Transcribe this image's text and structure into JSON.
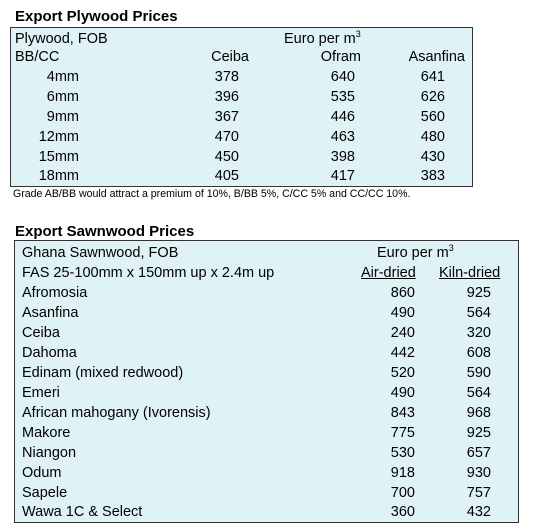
{
  "plywood": {
    "title": "Export Plywood Prices",
    "header_left_1": "Plywood, FOB",
    "header_left_2": "BB/CC",
    "unit_main": "Euro per m",
    "unit_sup": "3",
    "columns": [
      "Ceiba",
      "Ofram",
      "Asanfina"
    ],
    "rows": [
      {
        "size": "4mm",
        "values": [
          "378",
          "640",
          "641"
        ]
      },
      {
        "size": "6mm",
        "values": [
          "396",
          "535",
          "626"
        ]
      },
      {
        "size": "9mm",
        "values": [
          "367",
          "446",
          "560"
        ]
      },
      {
        "size": "12mm",
        "values": [
          "470",
          "463",
          "480"
        ]
      },
      {
        "size": "15mm",
        "values": [
          "450",
          "398",
          "430"
        ]
      },
      {
        "size": "18mm",
        "values": [
          "405",
          "417",
          "383"
        ]
      }
    ],
    "note": "Grade AB/BB would attract a premium of 10%, B/BB 5%, C/CC 5% and CC/CC 10%."
  },
  "sawnwood": {
    "title": "Export Sawnwood Prices",
    "header_left_1": "Ghana Sawnwood, FOB",
    "header_left_2": "FAS 25-100mm x 150mm up x 2.4m up",
    "unit_main": "Euro per m",
    "unit_sup": "3",
    "columns": [
      "Air-dried",
      "Kiln-dried"
    ],
    "rows": [
      {
        "species": "Afromosia",
        "values": [
          "860",
          "925"
        ]
      },
      {
        "species": "Asanfina",
        "values": [
          "490",
          "564"
        ]
      },
      {
        "species": "Ceiba",
        "values": [
          "240",
          "320"
        ]
      },
      {
        "species": "Dahoma",
        "values": [
          "442",
          "608"
        ]
      },
      {
        "species": "Edinam (mixed redwood)",
        "values": [
          "520",
          "590"
        ]
      },
      {
        "species": "Emeri",
        "values": [
          "490",
          "564"
        ]
      },
      {
        "species": "African mahogany (Ivorensis)",
        "values": [
          "843",
          "968"
        ]
      },
      {
        "species": "Makore",
        "values": [
          "775",
          "925"
        ]
      },
      {
        "species": "Niangon",
        "values": [
          "530",
          "657"
        ]
      },
      {
        "species": "Odum",
        "values": [
          "918",
          "930"
        ]
      },
      {
        "species": "Sapele",
        "values": [
          "700",
          "757"
        ]
      },
      {
        "species": "Wawa 1C & Select",
        "values": [
          "360",
          "432"
        ]
      }
    ]
  },
  "colors": {
    "table_bg": "#dff3f6",
    "border": "#333333",
    "text": "#000000"
  }
}
